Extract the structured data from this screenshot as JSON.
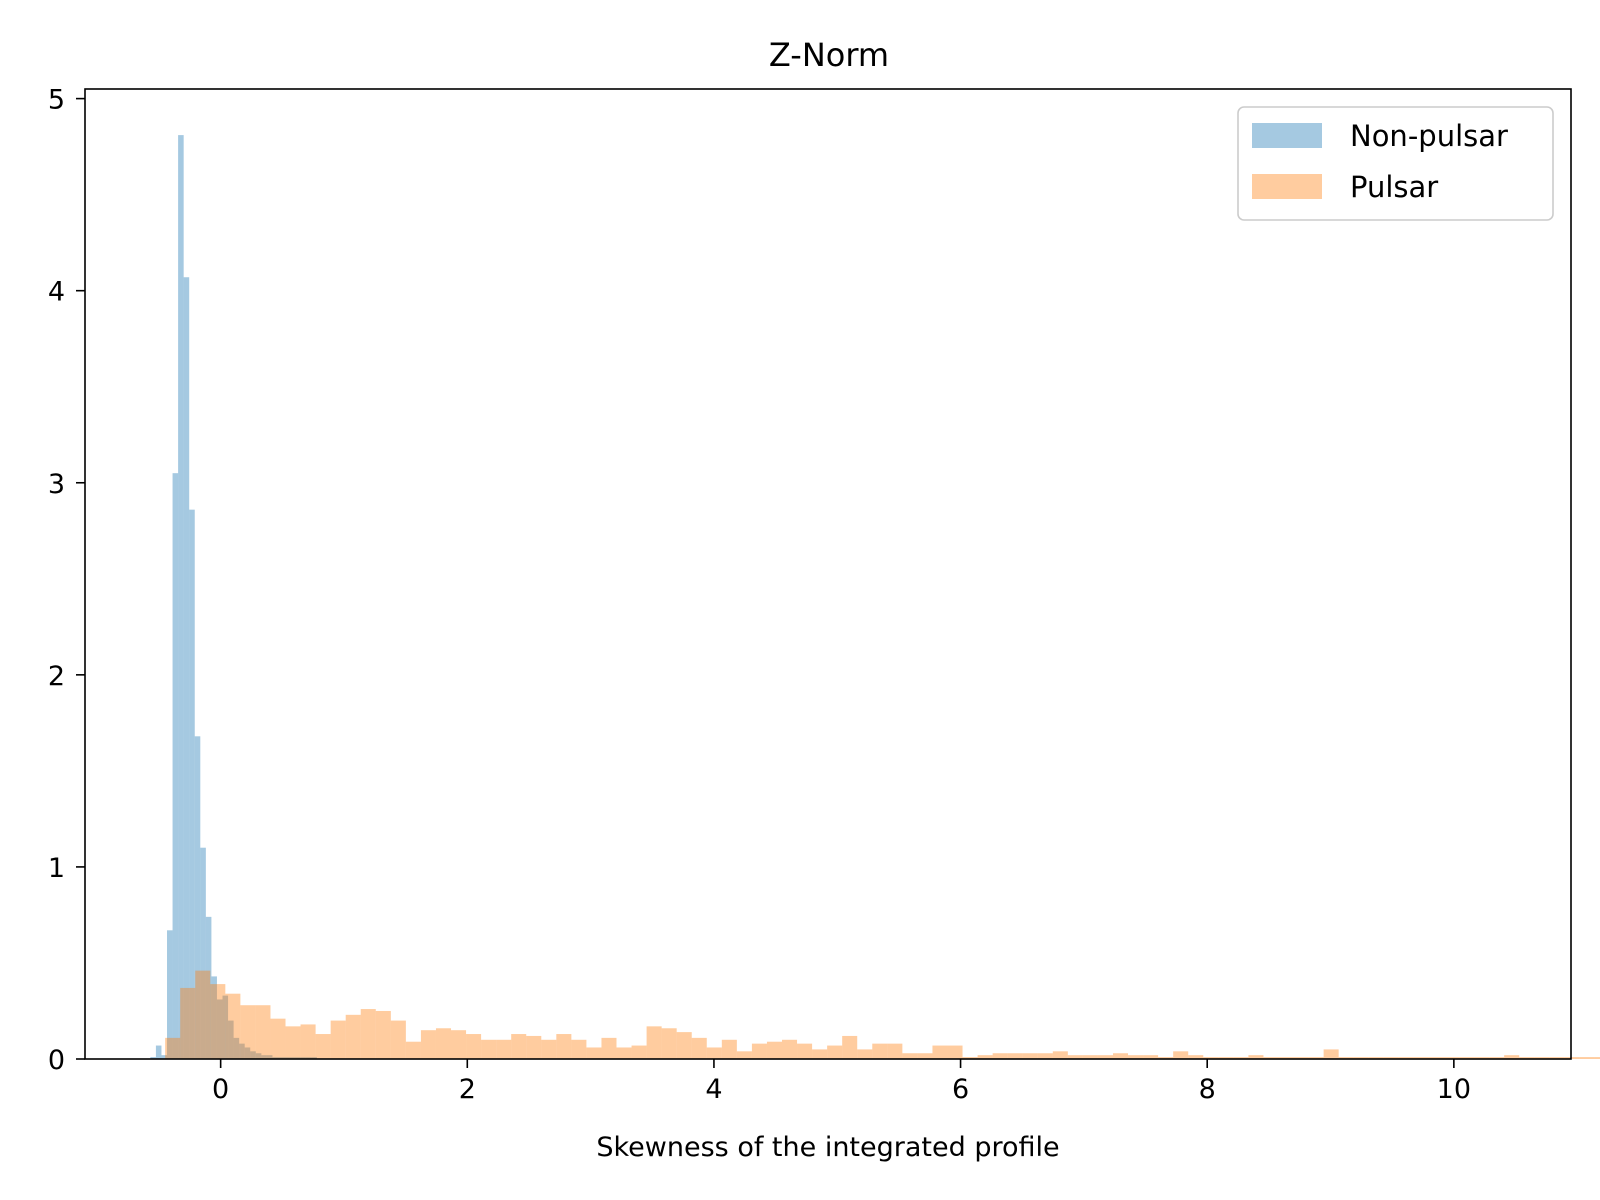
{
  "chart_data": {
    "type": "bar",
    "title": "Z-Norm",
    "xlabel": "Skewness of the integrated profile",
    "ylabel": "",
    "xlim": [
      -1.1,
      10.95
    ],
    "ylim": [
      0,
      5.05
    ],
    "xticks": [
      0,
      2,
      4,
      6,
      8,
      10
    ],
    "yticks": [
      0,
      1,
      2,
      3,
      4,
      5
    ],
    "grid": false,
    "legend_position": "top-right",
    "series": [
      {
        "name": "Non-pulsar",
        "color": "#1f77b4",
        "opacity": 0.4,
        "bin_start": -0.57,
        "bin_width": 0.045,
        "values": [
          0.01,
          0.07,
          0.02,
          0.67,
          3.05,
          4.81,
          4.07,
          2.86,
          1.68,
          1.1,
          0.74,
          0.43,
          0.31,
          0.33,
          0.2,
          0.11,
          0.08,
          0.06,
          0.04,
          0.03,
          0.02,
          0.02,
          0.01,
          0.01,
          0.01,
          0.01,
          0.01,
          0.01,
          0.01,
          0.01
        ]
      },
      {
        "name": "Pulsar",
        "color": "#ff7f0e",
        "opacity": 0.4,
        "bin_start": -0.45,
        "bin_width": 0.122,
        "values": [
          0.11,
          0.37,
          0.46,
          0.39,
          0.34,
          0.28,
          0.28,
          0.21,
          0.17,
          0.18,
          0.13,
          0.2,
          0.23,
          0.26,
          0.25,
          0.2,
          0.09,
          0.15,
          0.16,
          0.15,
          0.13,
          0.1,
          0.1,
          0.13,
          0.12,
          0.1,
          0.13,
          0.1,
          0.06,
          0.11,
          0.06,
          0.07,
          0.17,
          0.16,
          0.14,
          0.11,
          0.06,
          0.1,
          0.04,
          0.08,
          0.09,
          0.1,
          0.08,
          0.05,
          0.07,
          0.12,
          0.05,
          0.08,
          0.08,
          0.03,
          0.03,
          0.07,
          0.07,
          0.01,
          0.02,
          0.03,
          0.03,
          0.03,
          0.03,
          0.04,
          0.02,
          0.02,
          0.02,
          0.03,
          0.02,
          0.02,
          0.01,
          0.04,
          0.02,
          0.01,
          0.01,
          0.01,
          0.02,
          0.01,
          0.01,
          0.01,
          0.01,
          0.05,
          0.01,
          0.01,
          0.01,
          0.01,
          0.01,
          0.01,
          0.01,
          0.01,
          0.01,
          0.01,
          0.01,
          0.02,
          0.01,
          0.01,
          0.01,
          0.01,
          0.01,
          0.01,
          0.01,
          0.01,
          0.01
        ]
      }
    ]
  }
}
